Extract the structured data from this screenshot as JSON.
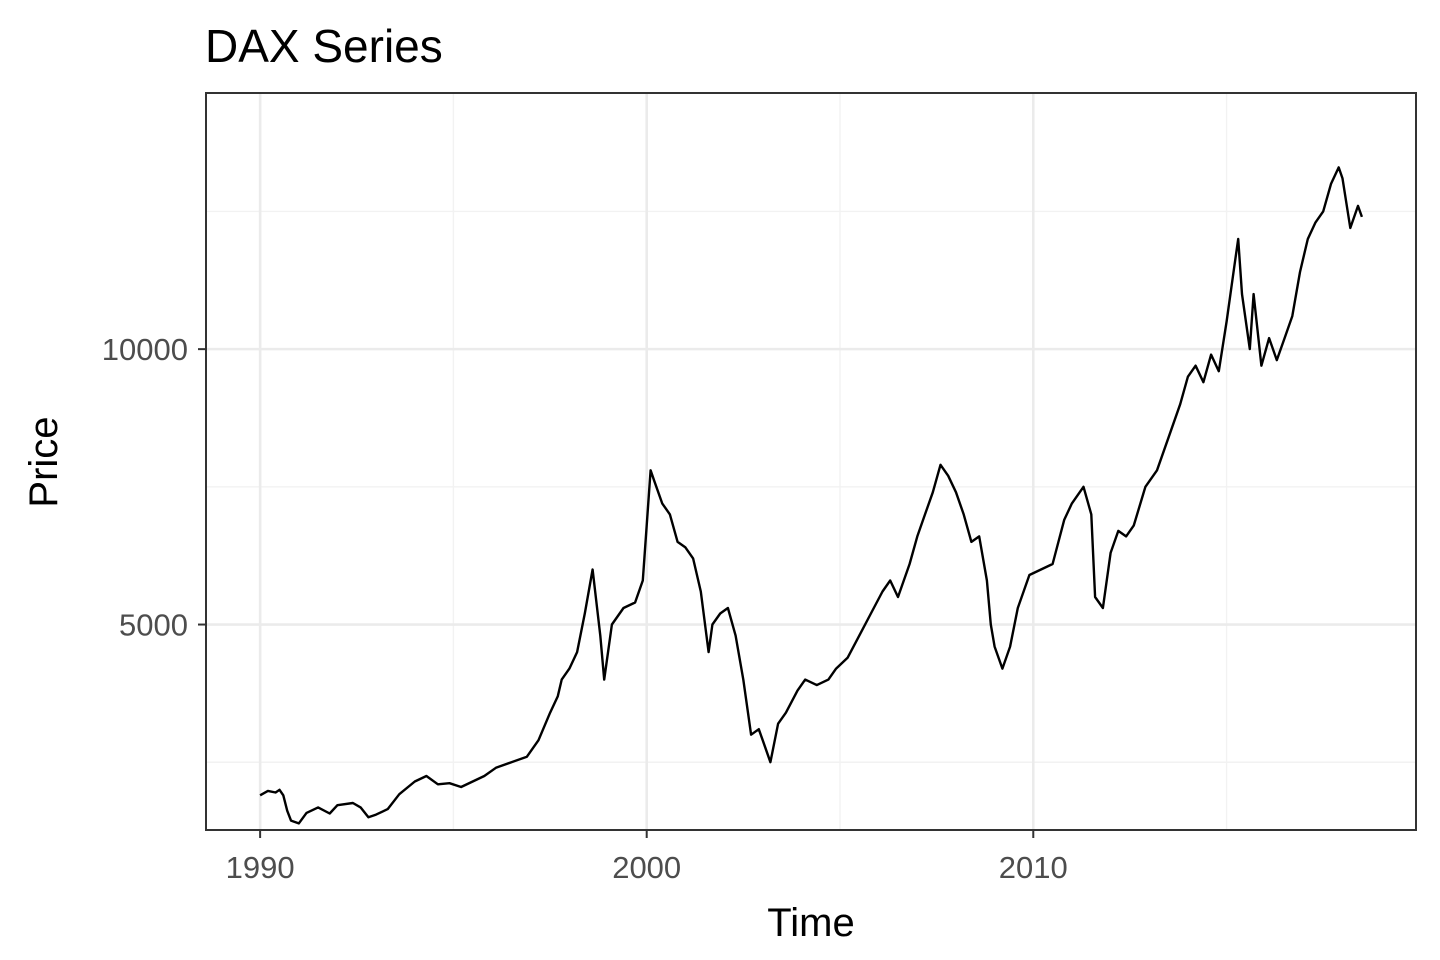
{
  "chart_data": {
    "type": "line",
    "title": "DAX Series",
    "xlabel": "Time",
    "ylabel": "Price",
    "xlim": [
      1988.6,
      2019.9
    ],
    "ylim": [
      1270,
      14650
    ],
    "x_major_ticks": [
      1990,
      2000,
      2010
    ],
    "x_tick_labels": [
      "1990",
      "2000",
      "2010"
    ],
    "x_minor_ticks": [
      1995,
      2005,
      2015
    ],
    "y_major_ticks": [
      5000,
      10000
    ],
    "y_tick_labels": [
      "5000",
      "10000"
    ],
    "y_minor_ticks": [
      2500,
      7500,
      12500
    ],
    "grid": true,
    "legend": "none",
    "series": [
      {
        "color": "#000000",
        "x": [
          1990.0,
          1990.2,
          1990.4,
          1990.5,
          1990.6,
          1990.7,
          1990.8,
          1991.0,
          1991.2,
          1991.5,
          1991.8,
          1992.0,
          1992.4,
          1992.6,
          1992.8,
          1993.0,
          1993.3,
          1993.6,
          1994.0,
          1994.3,
          1994.6,
          1994.9,
          1995.2,
          1995.5,
          1995.8,
          1996.1,
          1996.5,
          1996.9,
          1997.2,
          1997.5,
          1997.7,
          1997.8,
          1998.0,
          1998.2,
          1998.4,
          1998.6,
          1998.8,
          1998.9,
          1999.1,
          1999.4,
          1999.7,
          1999.9,
          2000.0,
          2000.1,
          2000.2,
          2000.4,
          2000.6,
          2000.8,
          2001.0,
          2001.2,
          2001.4,
          2001.6,
          2001.7,
          2001.9,
          2002.1,
          2002.3,
          2002.5,
          2002.7,
          2002.9,
          2003.0,
          2003.2,
          2003.4,
          2003.6,
          2003.9,
          2004.1,
          2004.4,
          2004.7,
          2004.9,
          2005.2,
          2005.5,
          2005.8,
          2006.1,
          2006.3,
          2006.5,
          2006.8,
          2007.0,
          2007.2,
          2007.4,
          2007.6,
          2007.8,
          2008.0,
          2008.2,
          2008.4,
          2008.6,
          2008.8,
          2008.9,
          2009.0,
          2009.2,
          2009.4,
          2009.6,
          2009.9,
          2010.2,
          2010.5,
          2010.8,
          2011.0,
          2011.3,
          2011.5,
          2011.6,
          2011.8,
          2012.0,
          2012.2,
          2012.4,
          2012.6,
          2012.9,
          2013.2,
          2013.5,
          2013.8,
          2014.0,
          2014.2,
          2014.4,
          2014.6,
          2014.8,
          2015.0,
          2015.2,
          2015.3,
          2015.4,
          2015.6,
          2015.7,
          2015.9,
          2016.1,
          2016.3,
          2016.5,
          2016.7,
          2016.9,
          2017.1,
          2017.3,
          2017.5,
          2017.7,
          2017.9,
          2018.0,
          2018.2,
          2018.4,
          2018.5
        ],
        "y": [
          1900,
          1980,
          1950,
          2000,
          1900,
          1620,
          1440,
          1390,
          1580,
          1680,
          1570,
          1720,
          1760,
          1680,
          1500,
          1550,
          1650,
          1920,
          2150,
          2250,
          2100,
          2120,
          2050,
          2150,
          2250,
          2400,
          2500,
          2600,
          2900,
          3400,
          3700,
          4000,
          4200,
          4500,
          5200,
          6000,
          4800,
          4000,
          5000,
          5300,
          5400,
          5800,
          6800,
          7800,
          7600,
          7200,
          7000,
          6500,
          6400,
          6200,
          5600,
          4500,
          5000,
          5200,
          5300,
          4800,
          4000,
          3000,
          3100,
          2900,
          2500,
          3200,
          3400,
          3800,
          4000,
          3900,
          4000,
          4200,
          4400,
          4800,
          5200,
          5600,
          5800,
          5500,
          6100,
          6600,
          7000,
          7400,
          7900,
          7700,
          7400,
          7000,
          6500,
          6600,
          5800,
          5000,
          4600,
          4200,
          4600,
          5300,
          5900,
          6000,
          6100,
          6900,
          7200,
          7500,
          7000,
          5500,
          5300,
          6300,
          6700,
          6600,
          6800,
          7500,
          7800,
          8400,
          9000,
          9500,
          9700,
          9400,
          9900,
          9600,
          10500,
          11500,
          12000,
          11000,
          10000,
          11000,
          9700,
          10200,
          9800,
          10200,
          10600,
          11400,
          12000,
          12300,
          12500,
          13000,
          13300,
          13100,
          12200,
          12600,
          12400
        ]
      }
    ]
  }
}
